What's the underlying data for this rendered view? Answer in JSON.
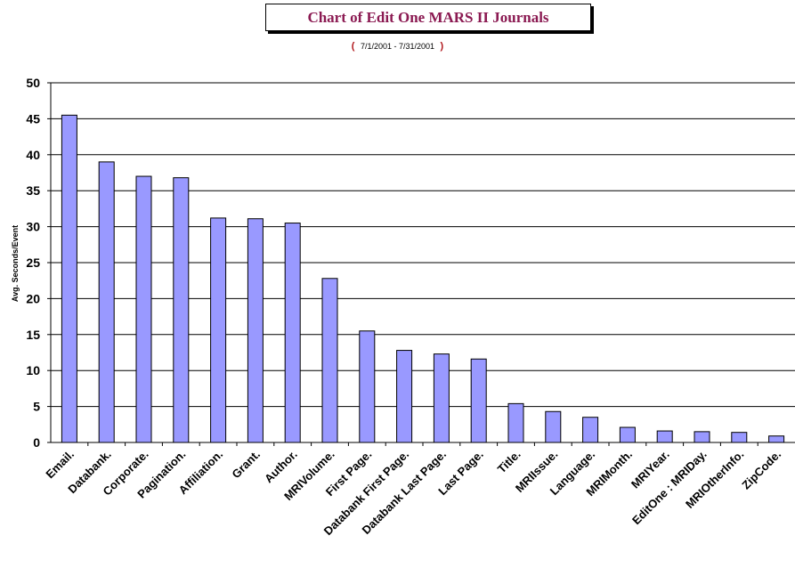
{
  "chart_data": {
    "type": "bar",
    "title": "Chart of Edit One MARS II Journals",
    "subtitle": {
      "open": "(",
      "range": "7/1/2001  -  7/31/2001",
      "close": ")"
    },
    "xlabel": "",
    "ylabel": "Avg. Seconds/Event",
    "ylim": [
      0,
      50
    ],
    "yticks": [
      0,
      5,
      10,
      15,
      20,
      25,
      30,
      35,
      40,
      45,
      50
    ],
    "grid": true,
    "legend": "none",
    "categories": [
      "Email.",
      "Databank.",
      "Corporate.",
      "Pagination.",
      "Affiliation.",
      "Grant.",
      "Author.",
      "MRIVolume.",
      "First Page.",
      "Databank First Page.",
      "Databank Last Page.",
      "Last Page.",
      "Title.",
      "MRIIssue.",
      "Language.",
      "MRIMonth.",
      "MRIYear.",
      "EditOne : MRIDay.",
      "MRIOtherInfo.",
      "ZipCode."
    ],
    "values": [
      45.5,
      39.0,
      37.0,
      36.8,
      31.2,
      31.1,
      30.5,
      22.8,
      15.5,
      12.8,
      12.3,
      11.6,
      5.4,
      4.3,
      3.5,
      2.1,
      1.6,
      1.5,
      1.4,
      0.9
    ],
    "colors": {
      "bar": "#9999ff",
      "bar_border": "#000000",
      "title": "#8b1a52",
      "paren": "#b0151a"
    }
  }
}
